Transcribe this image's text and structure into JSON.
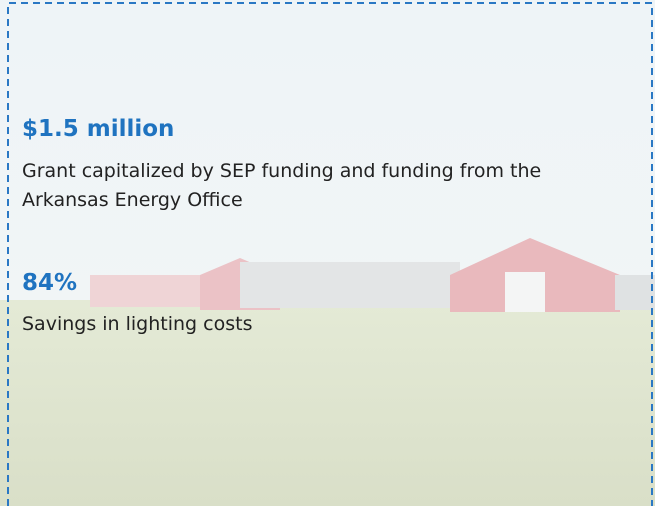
{
  "stats": [
    {
      "value": "$1.5 million",
      "description": "Grant capitalized by SEP funding and funding from the Arkansas Energy Office"
    },
    {
      "value": "84%",
      "description": "Savings in lighting costs"
    }
  ]
}
